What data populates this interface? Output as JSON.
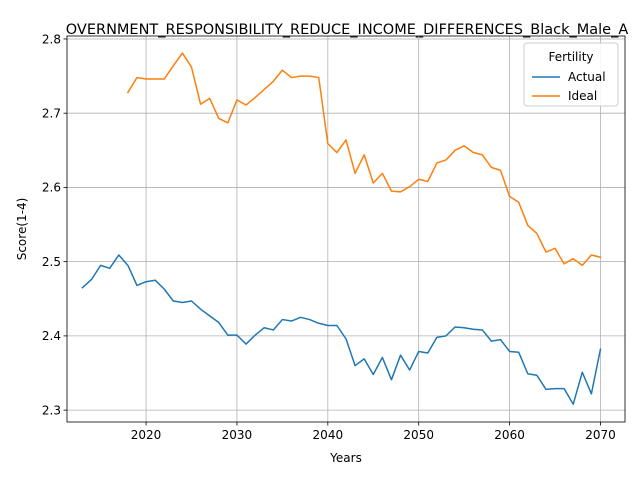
{
  "chart_data": {
    "type": "line",
    "title": "OVERNMENT_RESPONSIBILITY_REDUCE_INCOME_DIFFERENCES_Black_Male_A",
    "xlabel": "Years",
    "ylabel": "Score(1-4)",
    "xlim": [
      2011.3,
      2072.7
    ],
    "ylim": [
      2.284,
      2.804
    ],
    "xticks": [
      2020,
      2030,
      2040,
      2050,
      2060,
      2070
    ],
    "yticks": [
      2.3,
      2.4,
      2.5,
      2.6,
      2.7,
      2.8
    ],
    "grid": true,
    "legend": {
      "title": "Fertility",
      "placement": "top-right"
    },
    "series": [
      {
        "name": "Actual",
        "color": "#1f77b4",
        "x": [
          2013,
          2014,
          2015,
          2016,
          2017,
          2018,
          2019,
          2020,
          2021,
          2022,
          2023,
          2024,
          2025,
          2026,
          2027,
          2028,
          2029,
          2030,
          2031,
          2032,
          2033,
          2034,
          2035,
          2036,
          2037,
          2038,
          2039,
          2040,
          2041,
          2042,
          2043,
          2044,
          2045,
          2046,
          2047,
          2048,
          2049,
          2050,
          2051,
          2052,
          2053,
          2054,
          2055,
          2056,
          2057,
          2058,
          2059,
          2060,
          2061,
          2062,
          2063,
          2064,
          2065,
          2066,
          2067,
          2068,
          2069,
          2070
        ],
        "values": [
          2.465,
          2.476,
          2.495,
          2.491,
          2.509,
          2.495,
          2.468,
          2.473,
          2.475,
          2.463,
          2.447,
          2.445,
          2.447,
          2.436,
          2.427,
          2.418,
          2.401,
          2.401,
          2.389,
          2.401,
          2.411,
          2.408,
          2.422,
          2.42,
          2.425,
          2.422,
          2.417,
          2.414,
          2.414,
          2.396,
          2.36,
          2.369,
          2.348,
          2.371,
          2.341,
          2.374,
          2.354,
          2.379,
          2.377,
          2.398,
          2.4,
          2.412,
          2.411,
          2.409,
          2.408,
          2.393,
          2.395,
          2.379,
          2.378,
          2.349,
          2.347,
          2.328,
          2.329,
          2.329,
          2.308,
          2.351,
          2.322,
          2.382
        ]
      },
      {
        "name": "Ideal",
        "color": "#ff7f0e",
        "x": [
          2018,
          2019,
          2020,
          2021,
          2022,
          2023,
          2024,
          2025,
          2026,
          2027,
          2028,
          2029,
          2030,
          2031,
          2032,
          2033,
          2034,
          2035,
          2036,
          2037,
          2038,
          2039,
          2040,
          2041,
          2042,
          2043,
          2044,
          2045,
          2046,
          2047,
          2048,
          2049,
          2050,
          2051,
          2052,
          2053,
          2054,
          2055,
          2056,
          2057,
          2058,
          2059,
          2060,
          2061,
          2062,
          2063,
          2064,
          2065,
          2066,
          2067,
          2068,
          2069,
          2070
        ],
        "values": [
          2.728,
          2.748,
          2.746,
          2.746,
          2.746,
          2.764,
          2.781,
          2.762,
          2.712,
          2.72,
          2.693,
          2.687,
          2.718,
          2.711,
          2.721,
          2.732,
          2.743,
          2.758,
          2.748,
          2.75,
          2.75,
          2.748,
          2.659,
          2.647,
          2.664,
          2.619,
          2.644,
          2.606,
          2.619,
          2.595,
          2.594,
          2.601,
          2.611,
          2.608,
          2.633,
          2.637,
          2.65,
          2.656,
          2.647,
          2.644,
          2.627,
          2.623,
          2.588,
          2.58,
          2.549,
          2.538,
          2.513,
          2.518,
          2.497,
          2.504,
          2.495,
          2.509,
          2.506
        ]
      }
    ]
  }
}
